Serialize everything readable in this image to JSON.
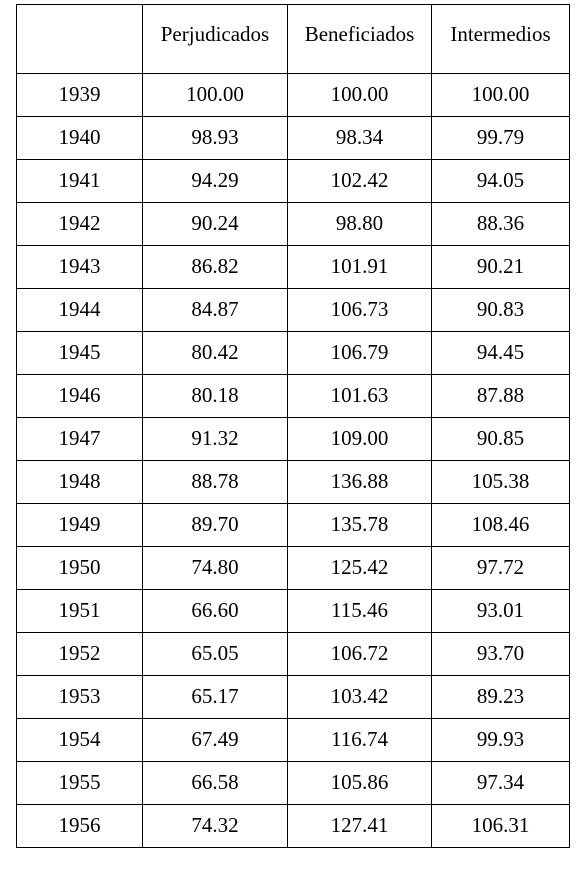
{
  "table": {
    "headers": [
      "",
      "Perjudicados",
      "Beneficiados",
      "Intermedios"
    ],
    "rows": [
      [
        "1939",
        "100.00",
        "100.00",
        "100.00"
      ],
      [
        "1940",
        "98.93",
        "98.34",
        "99.79"
      ],
      [
        "1941",
        "94.29",
        "102.42",
        "94.05"
      ],
      [
        "1942",
        "90.24",
        "98.80",
        "88.36"
      ],
      [
        "1943",
        "86.82",
        "101.91",
        "90.21"
      ],
      [
        "1944",
        "84.87",
        "106.73",
        "90.83"
      ],
      [
        "1945",
        "80.42",
        "106.79",
        "94.45"
      ],
      [
        "1946",
        "80.18",
        "101.63",
        "87.88"
      ],
      [
        "1947",
        "91.32",
        "109.00",
        "90.85"
      ],
      [
        "1948",
        "88.78",
        "136.88",
        "105.38"
      ],
      [
        "1949",
        "89.70",
        "135.78",
        "108.46"
      ],
      [
        "1950",
        "74.80",
        "125.42",
        "97.72"
      ],
      [
        "1951",
        "66.60",
        "115.46",
        "93.01"
      ],
      [
        "1952",
        "65.05",
        "106.72",
        "93.70"
      ],
      [
        "1953",
        "65.17",
        "103.42",
        "89.23"
      ],
      [
        "1954",
        "67.49",
        "116.74",
        "99.93"
      ],
      [
        "1955",
        "66.58",
        "105.86",
        "97.34"
      ],
      [
        "1956",
        "74.32",
        "127.41",
        "106.31"
      ]
    ]
  }
}
